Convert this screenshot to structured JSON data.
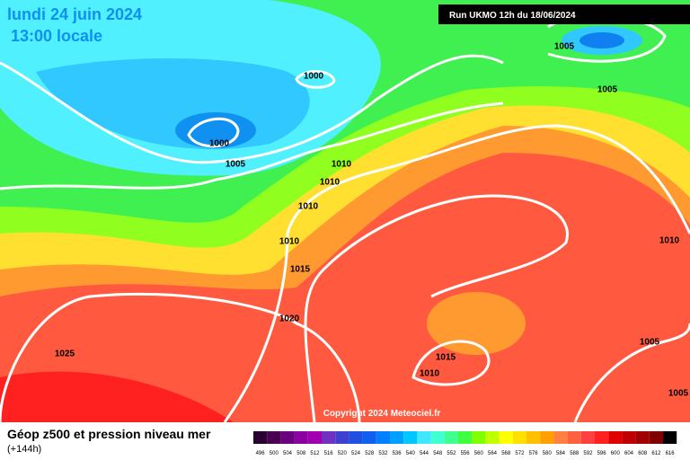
{
  "header": {
    "date": "lundi 24 juin 2024",
    "time": "13:00 locale",
    "run": "Run UKMO 12h du 18/06/2024"
  },
  "map": {
    "isobar_labels": [
      "1005",
      "1005",
      "1000",
      "1000",
      "1005",
      "1010",
      "1010",
      "1010",
      "1010",
      "1015",
      "1020",
      "1025",
      "1015",
      "1010",
      "1010",
      "1005",
      "1005"
    ],
    "copyright": "Copyright 2024 Meteociel.fr"
  },
  "legend": {
    "title": "Géop z500 et pression niveau mer",
    "lead": "(+144h)",
    "scale": {
      "labels": [
        "496",
        "500",
        "504",
        "508",
        "512",
        "516",
        "520",
        "524",
        "528",
        "532",
        "536",
        "540",
        "544",
        "548",
        "552",
        "556",
        "560",
        "564",
        "568",
        "572",
        "576",
        "580",
        "584",
        "588",
        "592",
        "596",
        "600",
        "604",
        "608",
        "612",
        "616"
      ],
      "colors": [
        "#2a0030",
        "#4a0050",
        "#6a0080",
        "#8a00a0",
        "#a000b0",
        "#7030c0",
        "#4040d0",
        "#2050e0",
        "#1060f0",
        "#0080ff",
        "#00a0ff",
        "#00c8ff",
        "#40e8ff",
        "#40ffd0",
        "#40ff90",
        "#40ff40",
        "#80ff00",
        "#c0ff00",
        "#ffff00",
        "#ffe000",
        "#ffc000",
        "#ffa000",
        "#ff8040",
        "#ff6040",
        "#ff4040",
        "#ff2020",
        "#e00000",
        "#c00000",
        "#a00000",
        "#800000",
        "#000000"
      ]
    }
  }
}
